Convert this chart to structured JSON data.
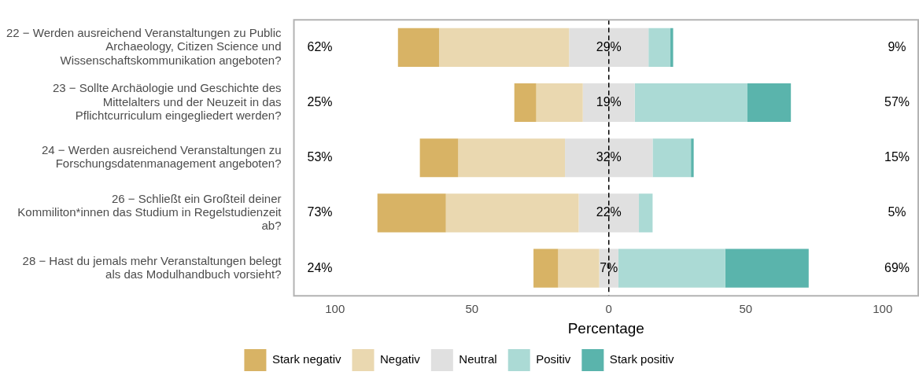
{
  "chart_data": {
    "type": "bar",
    "orientation": "horizontal",
    "xlabel": "Percentage",
    "categories": [
      "22 − Werden ausreichend Veranstaltungen zu Public\nArchaeology, Citizen Science und\nWissenschaftskommunikation angeboten?",
      "23 − Sollte Archäologie und Geschichte des\nMittelalters und der Neuzeit in das\nPflichtcurriculum eingegliedert werden?",
      "24 − Werden ausreichend Veranstaltungen zu\nForschungsdatenmanagement angeboten?",
      "26 − Schließt ein Großteil deiner\nKommiliton*innen das Studium in Regelstudienzeit\nab?",
      "28 − Hast du jemals mehr Veranstaltungen belegt\nals das Modulhandbuch vorsieht?"
    ],
    "series": [
      {
        "name": "Stark negativ",
        "color": "#d8b365",
        "base": [
          -77,
          -34.5,
          -69,
          -84.5,
          -27.5
        ],
        "values": [
          15,
          8,
          14,
          25,
          9
        ]
      },
      {
        "name": "Negativ",
        "color": "#ead8b0",
        "base": [
          -62,
          -26.5,
          -55,
          -59.5,
          -18.5
        ],
        "values": [
          47.5,
          17,
          39,
          48.5,
          15
        ]
      },
      {
        "name": "Neutral",
        "color": "#e0e0e0",
        "base": [
          -14.5,
          -9.5,
          -16,
          -11,
          -3.5
        ],
        "values": [
          29,
          19,
          32,
          22,
          7
        ]
      },
      {
        "name": "Positiv",
        "color": "#abdad5",
        "base": [
          14.5,
          9.5,
          16,
          11,
          3.5
        ],
        "values": [
          8,
          41,
          14,
          5,
          39
        ]
      },
      {
        "name": "Stark positiv",
        "color": "#5ab4ac",
        "base": [
          22.5,
          50.5,
          30,
          null,
          42.5
        ],
        "values": [
          1,
          16,
          1,
          null,
          30.5
        ]
      }
    ],
    "xlim": [
      -115,
      113
    ],
    "xticks": [
      {
        "value": -100,
        "label": "100"
      },
      {
        "value": -50,
        "label": "50"
      },
      0,
      50,
      100
    ],
    "ref_lines": [
      {
        "axis": "x",
        "value": 0,
        "line_style": "dashed",
        "color": "#000000"
      }
    ],
    "annotations": [
      "62%",
      "29%",
      "9%",
      "25%",
      "19%",
      "57%",
      "53%",
      "32%",
      "15%",
      "73%",
      "22%",
      "5%",
      "24%",
      "7%",
      "69%"
    ],
    "legend": "bottom"
  }
}
